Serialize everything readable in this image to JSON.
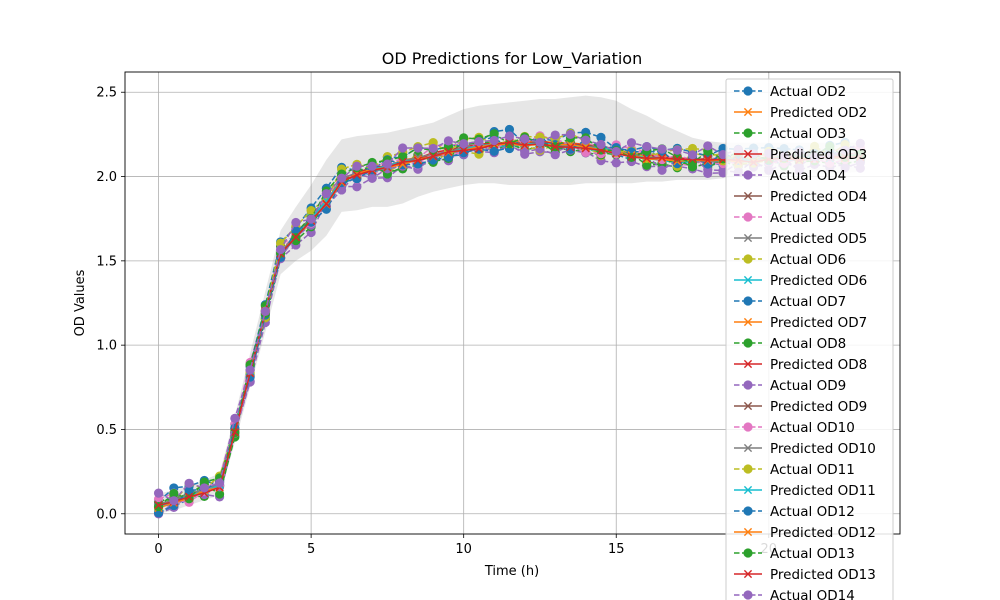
{
  "chart_data": {
    "type": "line",
    "title": "OD Predictions for Low_Variation",
    "xlabel": "Time (h)",
    "ylabel": "OD Values",
    "xlim": [
      -1.1,
      24.3
    ],
    "ylim": [
      -0.12,
      2.62
    ],
    "xticks": [
      0,
      5,
      10,
      15,
      20
    ],
    "xtick_labels": [
      "0",
      "5",
      "10",
      "15",
      "20"
    ],
    "yticks": [
      0.0,
      0.5,
      1.0,
      1.5,
      2.0,
      2.5
    ],
    "ytick_labels": [
      "0.0",
      "0.5",
      "1.0",
      "1.5",
      "2.0",
      "2.5"
    ],
    "grid": true,
    "legend_position": "upper-right",
    "x": [
      0,
      0.5,
      1,
      1.5,
      2,
      2.5,
      3,
      3.5,
      4,
      4.5,
      5,
      5.5,
      6,
      6.5,
      7,
      7.5,
      8,
      8.5,
      9,
      9.5,
      10,
      10.5,
      11,
      11.5,
      12,
      12.5,
      13,
      13.5,
      14,
      14.5,
      15,
      15.5,
      16,
      16.5,
      17,
      17.5,
      18,
      18.5,
      19,
      19.5,
      20,
      20.5,
      21,
      21.5,
      22,
      22.5,
      23
    ],
    "mean_curve": [
      0.05,
      0.08,
      0.11,
      0.14,
      0.17,
      0.5,
      0.85,
      1.2,
      1.55,
      1.65,
      1.75,
      1.85,
      1.98,
      2.02,
      2.04,
      2.06,
      2.09,
      2.11,
      2.13,
      2.15,
      2.17,
      2.18,
      2.19,
      2.2,
      2.2,
      2.2,
      2.19,
      2.19,
      2.18,
      2.17,
      2.15,
      2.13,
      2.12,
      2.11,
      2.1,
      2.1,
      2.1,
      2.1,
      2.1,
      2.1,
      2.11,
      2.11,
      2.11,
      2.12,
      2.12,
      2.12,
      2.13
    ],
    "band_upper": [
      0.12,
      0.14,
      0.17,
      0.2,
      0.24,
      0.58,
      0.95,
      1.32,
      1.68,
      1.82,
      1.95,
      2.1,
      2.22,
      2.24,
      2.25,
      2.26,
      2.28,
      2.3,
      2.32,
      2.36,
      2.4,
      2.42,
      2.43,
      2.44,
      2.45,
      2.46,
      2.46,
      2.47,
      2.48,
      2.47,
      2.45,
      2.4,
      2.36,
      2.31,
      2.27,
      2.23,
      2.21,
      2.2,
      2.2,
      2.2,
      2.2,
      2.2,
      2.2,
      2.2,
      2.2,
      2.2,
      2.2
    ],
    "band_lower": [
      0.0,
      0.02,
      0.05,
      0.08,
      0.11,
      0.42,
      0.75,
      1.08,
      1.42,
      1.5,
      1.56,
      1.65,
      1.79,
      1.8,
      1.82,
      1.82,
      1.84,
      1.88,
      1.91,
      1.93,
      1.95,
      1.96,
      1.96,
      1.95,
      1.95,
      1.95,
      1.95,
      1.95,
      1.96,
      1.96,
      1.96,
      1.96,
      1.97,
      1.97,
      1.98,
      1.98,
      1.98,
      1.99,
      2.0,
      2.0,
      2.01,
      2.01,
      2.01,
      2.02,
      2.02,
      2.02,
      2.03
    ],
    "point_jitter": 0.04,
    "series": [
      {
        "name": "Actual OD2",
        "color": "#1f77b4",
        "kind": "actual"
      },
      {
        "name": "Predicted OD2",
        "color": "#ff7f0e",
        "kind": "predicted"
      },
      {
        "name": "Actual OD3",
        "color": "#2ca02c",
        "kind": "actual"
      },
      {
        "name": "Predicted OD3",
        "color": "#d62728",
        "kind": "predicted"
      },
      {
        "name": "Actual OD4",
        "color": "#9467bd",
        "kind": "actual"
      },
      {
        "name": "Predicted OD4",
        "color": "#8c564b",
        "kind": "predicted"
      },
      {
        "name": "Actual OD5",
        "color": "#e377c2",
        "kind": "actual"
      },
      {
        "name": "Predicted OD5",
        "color": "#7f7f7f",
        "kind": "predicted"
      },
      {
        "name": "Actual OD6",
        "color": "#bcbd22",
        "kind": "actual"
      },
      {
        "name": "Predicted OD6",
        "color": "#17becf",
        "kind": "predicted"
      },
      {
        "name": "Actual OD7",
        "color": "#1f77b4",
        "kind": "actual"
      },
      {
        "name": "Predicted OD7",
        "color": "#ff7f0e",
        "kind": "predicted"
      },
      {
        "name": "Actual OD8",
        "color": "#2ca02c",
        "kind": "actual"
      },
      {
        "name": "Predicted OD8",
        "color": "#d62728",
        "kind": "predicted"
      },
      {
        "name": "Actual OD9",
        "color": "#9467bd",
        "kind": "actual"
      },
      {
        "name": "Predicted OD9",
        "color": "#8c564b",
        "kind": "predicted"
      },
      {
        "name": "Actual OD10",
        "color": "#e377c2",
        "kind": "actual"
      },
      {
        "name": "Predicted OD10",
        "color": "#7f7f7f",
        "kind": "predicted"
      },
      {
        "name": "Actual OD11",
        "color": "#bcbd22",
        "kind": "actual"
      },
      {
        "name": "Predicted OD11",
        "color": "#17becf",
        "kind": "predicted"
      },
      {
        "name": "Actual OD12",
        "color": "#1f77b4",
        "kind": "actual"
      },
      {
        "name": "Predicted OD12",
        "color": "#ff7f0e",
        "kind": "predicted"
      },
      {
        "name": "Actual OD13",
        "color": "#2ca02c",
        "kind": "actual"
      },
      {
        "name": "Predicted OD13",
        "color": "#d62728",
        "kind": "predicted"
      },
      {
        "name": "Actual OD14",
        "color": "#9467bd",
        "kind": "actual"
      }
    ]
  }
}
